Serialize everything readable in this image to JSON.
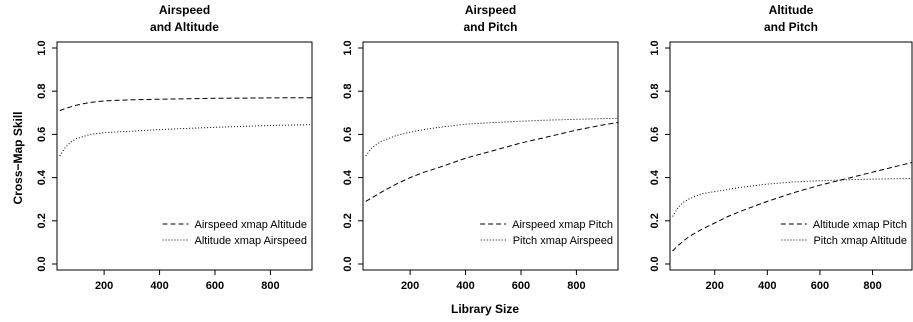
{
  "figure": {
    "ylabel": "Cross−Map Skill",
    "xlabel": "Library Size"
  },
  "chart_data": [
    {
      "type": "line",
      "title_lines": [
        "Airspeed",
        "and Altitude"
      ],
      "xlim": [
        30,
        950
      ],
      "ylim": [
        0,
        1
      ],
      "x_ticks": [
        200,
        400,
        600,
        800
      ],
      "y_ticks": [
        0.0,
        0.2,
        0.4,
        0.6,
        0.8,
        1.0
      ],
      "y_tick_labels": [
        "0.0",
        "0.2",
        "0.4",
        "0.6",
        "0.8",
        "1.0"
      ],
      "legend_position": "bottom-right",
      "series": [
        {
          "name": "Airspeed xmap Altitude",
          "dash": "dashed",
          "x": [
            40,
            60,
            80,
            100,
            150,
            200,
            250,
            300,
            400,
            500,
            600,
            700,
            800,
            900,
            950
          ],
          "y": [
            0.71,
            0.72,
            0.728,
            0.735,
            0.748,
            0.755,
            0.758,
            0.76,
            0.763,
            0.765,
            0.767,
            0.768,
            0.769,
            0.77,
            0.77
          ]
        },
        {
          "name": "Altitude xmap Airspeed",
          "dash": "dotted",
          "x": [
            40,
            60,
            80,
            100,
            150,
            200,
            250,
            300,
            400,
            500,
            600,
            700,
            800,
            900,
            950
          ],
          "y": [
            0.5,
            0.54,
            0.565,
            0.58,
            0.6,
            0.608,
            0.612,
            0.615,
            0.622,
            0.628,
            0.633,
            0.637,
            0.641,
            0.644,
            0.645
          ]
        }
      ]
    },
    {
      "type": "line",
      "title_lines": [
        "Airspeed",
        "and Pitch"
      ],
      "xlim": [
        30,
        950
      ],
      "ylim": [
        0,
        1
      ],
      "x_ticks": [
        200,
        400,
        600,
        800
      ],
      "y_ticks": [
        0.0,
        0.2,
        0.4,
        0.6,
        0.8,
        1.0
      ],
      "y_tick_labels": [
        "0.0",
        "0.2",
        "0.4",
        "0.6",
        "0.8",
        "1.0"
      ],
      "legend_position": "bottom-right",
      "series": [
        {
          "name": "Airspeed xmap Pitch",
          "dash": "dashed",
          "x": [
            40,
            60,
            80,
            100,
            150,
            200,
            250,
            300,
            400,
            500,
            600,
            700,
            800,
            900,
            950
          ],
          "y": [
            0.29,
            0.305,
            0.32,
            0.335,
            0.37,
            0.4,
            0.425,
            0.445,
            0.49,
            0.525,
            0.56,
            0.59,
            0.62,
            0.645,
            0.655
          ]
        },
        {
          "name": "Pitch xmap Airspeed",
          "dash": "dotted",
          "x": [
            40,
            60,
            80,
            100,
            150,
            200,
            250,
            300,
            400,
            500,
            600,
            700,
            800,
            900,
            950
          ],
          "y": [
            0.5,
            0.535,
            0.555,
            0.57,
            0.595,
            0.61,
            0.622,
            0.632,
            0.647,
            0.655,
            0.661,
            0.666,
            0.67,
            0.673,
            0.674
          ]
        }
      ]
    },
    {
      "type": "line",
      "title_lines": [
        "Altitude",
        "and Pitch"
      ],
      "xlim": [
        30,
        950
      ],
      "ylim": [
        0,
        1
      ],
      "x_ticks": [
        200,
        400,
        600,
        800
      ],
      "y_ticks": [
        0.0,
        0.2,
        0.4,
        0.6,
        0.8,
        1.0
      ],
      "y_tick_labels": [
        "0.0",
        "0.2",
        "0.4",
        "0.6",
        "0.8",
        "1.0"
      ],
      "legend_position": "bottom-right",
      "series": [
        {
          "name": "Altitude xmap Pitch",
          "dash": "dashed",
          "x": [
            40,
            60,
            80,
            100,
            150,
            200,
            250,
            300,
            400,
            500,
            600,
            700,
            800,
            900,
            950
          ],
          "y": [
            0.06,
            0.085,
            0.105,
            0.125,
            0.16,
            0.19,
            0.22,
            0.245,
            0.29,
            0.33,
            0.365,
            0.395,
            0.425,
            0.455,
            0.47
          ]
        },
        {
          "name": "Pitch xmap Altitude",
          "dash": "dotted",
          "x": [
            40,
            60,
            80,
            100,
            150,
            200,
            250,
            300,
            400,
            500,
            600,
            700,
            800,
            900,
            950
          ],
          "y": [
            0.22,
            0.26,
            0.285,
            0.3,
            0.325,
            0.335,
            0.345,
            0.355,
            0.37,
            0.38,
            0.385,
            0.39,
            0.393,
            0.395,
            0.396
          ]
        }
      ]
    }
  ]
}
